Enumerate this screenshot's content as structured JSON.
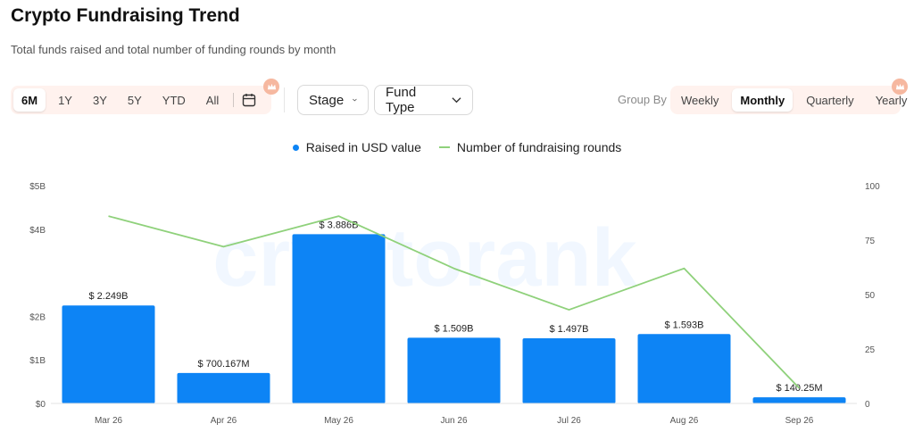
{
  "header": {
    "title": "Crypto Fundraising Trend",
    "subtitle": "Total funds raised and total number of funding rounds by month"
  },
  "toolbar": {
    "ranges": [
      "6M",
      "1Y",
      "3Y",
      "5Y",
      "YTD",
      "All"
    ],
    "active_range": "6M",
    "calendar_icon": "calendar-icon",
    "stage_label": "Stage",
    "fund_type_label": "Fund Type",
    "group_by_label": "Group By",
    "group_options": [
      "Weekly",
      "Monthly",
      "Quarterly",
      "Yearly"
    ],
    "active_group": "Monthly",
    "premium_icon": "crown-icon"
  },
  "watermark": "cryptorank",
  "colors": {
    "bar": "#0d84f5",
    "line": "#8fd17b",
    "accent_bg": "#fff2ee",
    "premium_badge": "#f6b8a0"
  },
  "chart_data": {
    "type": "bar",
    "categories": [
      "Mar 26",
      "Apr 26",
      "May 26",
      "Jun 26",
      "Jul 26",
      "Aug 26",
      "Sep 26"
    ],
    "series": [
      {
        "name": "Raised in USD value",
        "type": "bar",
        "axis": "left",
        "values": [
          2.249,
          0.700167,
          3.886,
          1.509,
          1.497,
          1.593,
          0.14025
        ],
        "labels": [
          "$ 2.249B",
          "$ 700.167M",
          "$ 3.886B",
          "$ 1.509B",
          "$ 1.497B",
          "$ 1.593B",
          "$ 140.25M"
        ]
      },
      {
        "name": "Number of fundraising rounds",
        "type": "line",
        "axis": "right",
        "values": [
          86,
          72,
          86,
          62,
          43,
          62,
          7
        ]
      }
    ],
    "y_left": {
      "ticks": [
        "$0",
        "$1B",
        "$2B",
        "$4B",
        "$5B"
      ],
      "tick_values": [
        0,
        1,
        2,
        4,
        5
      ],
      "range": [
        0,
        5
      ]
    },
    "y_right": {
      "ticks": [
        "0",
        "25",
        "50",
        "75",
        "100"
      ],
      "range": [
        0,
        100
      ]
    },
    "title": "",
    "xlabel": "",
    "ylabel": "",
    "grid": false,
    "legend": "top-center"
  }
}
